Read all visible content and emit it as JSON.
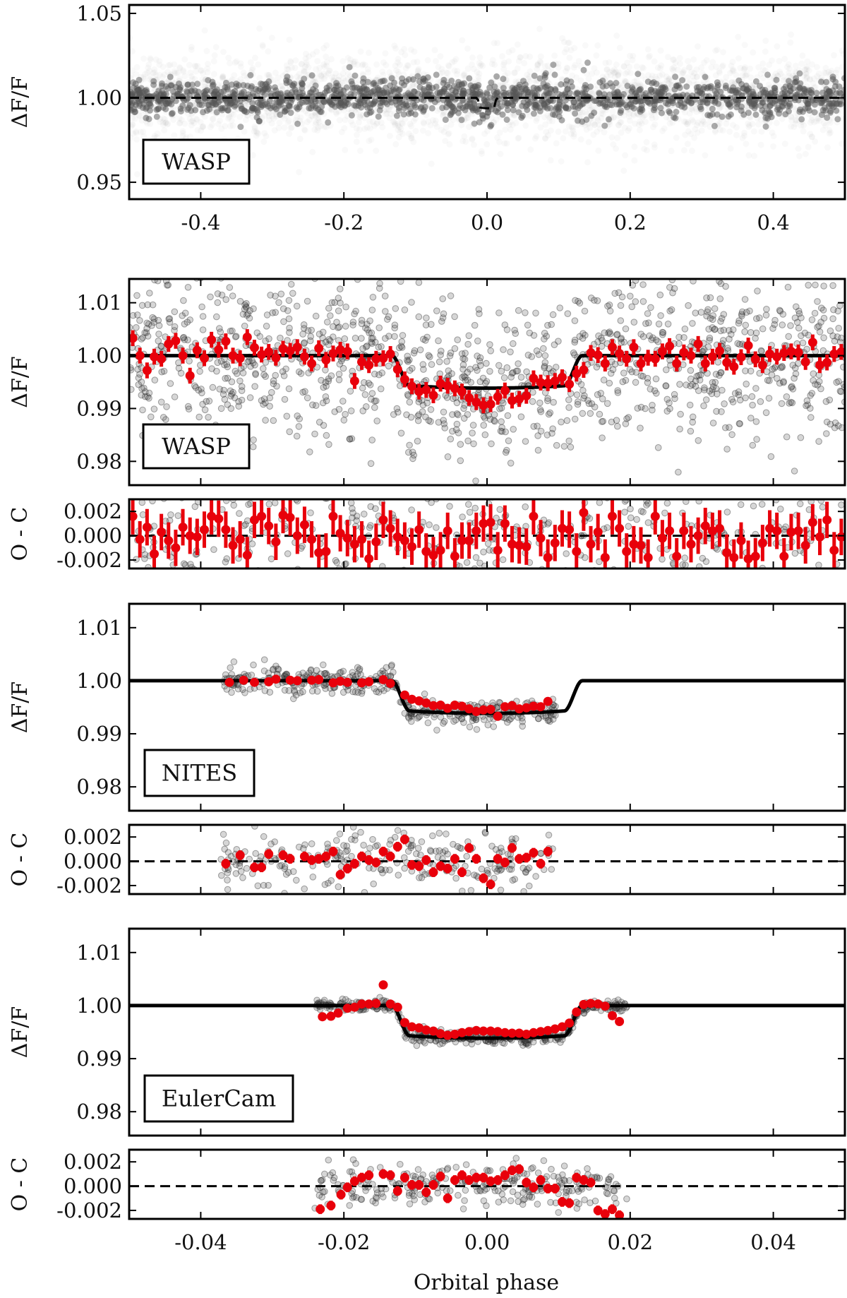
{
  "figure": {
    "xlabel": "Orbital phase"
  },
  "chart_data": [
    {
      "type": "scatter",
      "panel": "wasp-full",
      "label": "WASP",
      "ylabel": "ΔF/F",
      "xlim": [
        -0.5,
        0.5
      ],
      "ylim": [
        0.94,
        1.055
      ],
      "xticks": [
        -0.4,
        -0.2,
        0.0,
        0.2,
        0.4
      ],
      "xticklabels": [
        "-0.4",
        "-0.2",
        "0.0",
        "0.2",
        "0.4"
      ],
      "yticks": [
        0.95,
        1.0,
        1.05
      ],
      "yticklabels": [
        "0.95",
        "1.00",
        "1.05"
      ],
      "model": {
        "style": "dashed",
        "baseline": 1.0,
        "transit_depth": 0.0057,
        "transit_half_width": 0.0133
      },
      "points": "dense grey cloud centred on 1.00, dark core 0.992–1.008, faint scatter 0.95–1.05"
    },
    {
      "type": "scatter",
      "panel": "wasp-zoom",
      "label": "WASP",
      "ylabel": "ΔF/F",
      "xlim": [
        -0.05,
        0.05
      ],
      "ylim": [
        0.9755,
        1.0145
      ],
      "yticks": [
        0.98,
        0.99,
        1.0,
        1.01
      ],
      "yticklabels": [
        "0.98",
        "0.99",
        "1.00",
        "1.01"
      ],
      "model": {
        "style": "solid",
        "baseline": 1.0,
        "depth": 0.0057,
        "contact_t1": 0.0133,
        "contact_t2": 0.0108
      },
      "binned_x": [
        -0.0495,
        -0.0485,
        -0.0475,
        -0.0465,
        -0.0455,
        -0.0445,
        -0.0435,
        -0.0425,
        -0.0415,
        -0.0405,
        -0.0395,
        -0.0385,
        -0.0375,
        -0.0365,
        -0.0355,
        -0.0345,
        -0.0335,
        -0.0325,
        -0.0315,
        -0.0305,
        -0.0295,
        -0.0285,
        -0.0275,
        -0.0265,
        -0.0255,
        -0.0245,
        -0.0235,
        -0.0225,
        -0.0215,
        -0.0205,
        -0.0195,
        -0.0185,
        -0.0175,
        -0.0165,
        -0.0155,
        -0.0145,
        -0.0135,
        -0.0125,
        -0.0115,
        -0.0105,
        -0.0095,
        -0.0085,
        -0.0075,
        -0.0065,
        -0.0055,
        -0.0045,
        -0.0035,
        -0.0025,
        -0.0015,
        -0.0005,
        0.0005,
        0.0015,
        0.0025,
        0.0035,
        0.0045,
        0.0055,
        0.0065,
        0.0075,
        0.0085,
        0.0095,
        0.0105,
        0.0115,
        0.0125,
        0.0135,
        0.0145,
        0.0155,
        0.0165,
        0.0175,
        0.0185,
        0.0195,
        0.0205,
        0.0215,
        0.0225,
        0.0235,
        0.0245,
        0.0255,
        0.0265,
        0.0275,
        0.0285,
        0.0295,
        0.0305,
        0.0315,
        0.0325,
        0.0335,
        0.0345,
        0.0355,
        0.0365,
        0.0375,
        0.0385,
        0.0395,
        0.0405,
        0.0415,
        0.0425,
        0.0435,
        0.0445,
        0.0455,
        0.0465,
        0.0475,
        0.0485,
        0.0495
      ],
      "binned_y": [
        1.0033,
        1.0,
        0.9972,
        0.9998,
        0.9994,
        1.0022,
        1.0028,
        1.0,
        0.9962,
        1.001,
        0.9995,
        1.003,
        1.0011,
        1.0027,
        1.0,
        0.9995,
        1.0035,
        1.0015,
        1.0002,
        1.0007,
        0.9996,
        1.0013,
        1.0009,
        1.0016,
        0.9998,
        0.9985,
        1.0014,
        0.9992,
        1.0004,
        1.0011,
        1.0008,
        0.9952,
        0.9988,
        0.9982,
        0.9994,
        0.9995,
        1.0003,
        0.9974,
        0.9955,
        0.9942,
        0.9932,
        0.9935,
        0.9925,
        0.9947,
        0.9943,
        0.9938,
        0.9932,
        0.992,
        0.9912,
        0.9906,
        0.9908,
        0.9922,
        0.9934,
        0.9915,
        0.9918,
        0.9924,
        0.9957,
        0.9949,
        0.9948,
        0.9952,
        0.9959,
        0.9946,
        0.9966,
        0.9973,
        1.0005,
        1.0001,
        0.9985,
        1.0016,
        1.0004,
        0.9994,
        1.0016,
        0.9985,
        0.9996,
        0.9994,
        1.0008,
        1.0018,
        0.9985,
        1.0006,
        1.0,
        1.0022,
        0.9985,
        0.9998,
        1.0009,
        0.9987,
        0.9979,
        0.9997,
        1.0019,
        0.9993,
        0.9982,
        1.0003,
        0.9998,
        1.0005,
        1.0008,
        1.0006,
        0.9988,
        1.0025,
        0.9982,
        0.9987,
        1.0003,
        1.0007
      ],
      "binned_err": 0.0015
    },
    {
      "type": "scatter",
      "panel": "wasp-resid",
      "ylabel": "O - C",
      "xlim": [
        -0.05,
        0.05
      ],
      "ylim": [
        -0.0027,
        0.003
      ],
      "yticks": [
        -0.002,
        0.0,
        0.002
      ],
      "yticklabels": [
        "-0.002",
        "0.000",
        "0.002"
      ],
      "zero_line": "dashed",
      "binned_x": "same as WASP zoom",
      "binned_y": [
        0.0016,
        -0.0003,
        0.0007,
        -0.0015,
        0.0003,
        -0.0004,
        -0.001,
        0.0007,
        0.0,
        -0.0001,
        0.0005,
        0.0016,
        0.0014,
        0.0005,
        -0.0008,
        -0.0003,
        -0.0016,
        0.0013,
        0.0016,
        0.0008,
        -0.0005,
        0.0017,
        0.0015,
        0.0,
        0.0009,
        -0.0003,
        -0.0014,
        -0.0013,
        0.0016,
        0.0002,
        -0.0002,
        -0.0007,
        -0.0003,
        -0.0019,
        -0.0005,
        0.0013,
        0.0006,
        -0.0001,
        -0.0004,
        -0.0009,
        0.0005,
        -0.0013,
        -0.0016,
        -0.0012,
        0.0004,
        -0.0017,
        -0.0004,
        -0.0004,
        0.0004,
        0.001,
        0.0011,
        -0.0012,
        0.001,
        -0.0007,
        -0.0008,
        -0.0009,
        0.0016,
        -0.0002,
        -0.0018,
        -0.0006,
        0.0006,
        0.0005,
        -0.0013,
        0.0019,
        -0.0007,
        0.0003,
        -0.0018,
        0.0016,
        0.0006,
        -0.0013,
        -0.0007,
        -0.0008,
        -0.0018,
        0.0016,
        -0.0002,
        0.0004,
        -0.0017,
        0.0004,
        -0.0007,
        0.0,
        0.0008,
        0.0004,
        0.0006,
        -0.0014,
        -0.0018,
        -0.0004,
        -0.0019,
        -0.0017,
        -0.0006,
        0.0006,
        0.0004,
        -0.0017,
        0.0003,
        0.0004,
        -0.0008,
        0.0011,
        -0.0001,
        0.0013,
        -0.0012,
        -0.0001
      ],
      "binned_err": 0.0015
    },
    {
      "type": "scatter",
      "panel": "nites",
      "label": "NITES",
      "ylabel": "ΔF/F",
      "xlim": [
        -0.05,
        0.05
      ],
      "ylim": [
        0.9755,
        1.0145
      ],
      "yticks": [
        0.98,
        0.99,
        1.0,
        1.01
      ],
      "yticklabels": [
        "0.98",
        "0.99",
        "1.00",
        "1.01"
      ],
      "binned_x": [
        -0.036,
        -0.034,
        -0.0325,
        -0.0305,
        -0.0295,
        -0.0275,
        -0.0265,
        -0.0245,
        -0.0235,
        -0.0215,
        -0.0205,
        -0.0195,
        -0.0175,
        -0.0165,
        -0.0145,
        -0.0135,
        -0.0115,
        -0.0105,
        -0.0095,
        -0.0085,
        -0.0075,
        -0.0065,
        -0.0055,
        -0.0045,
        -0.0035,
        -0.0025,
        -0.0015,
        -0.0005,
        0.0005,
        0.0015,
        0.0025,
        0.0035,
        0.0045,
        0.0055,
        0.0065,
        0.0075,
        0.0085
      ],
      "binned_y": [
        0.9997,
        1.0001,
        0.9997,
        0.9998,
        1.0003,
        1.0001,
        1.0,
        1.0001,
        1.0002,
        0.9996,
        0.9999,
        0.9997,
        0.9996,
        0.9998,
        1.0002,
        0.9995,
        0.9973,
        0.9965,
        0.9962,
        0.9958,
        0.9953,
        0.9954,
        0.9948,
        0.9954,
        0.9952,
        0.9947,
        0.9942,
        0.9945,
        0.9946,
        0.9933,
        0.9951,
        0.9953,
        0.9947,
        0.9949,
        0.9952,
        0.9951,
        0.9961
      ],
      "binned_err": 0.0004
    },
    {
      "type": "scatter",
      "panel": "nites-resid",
      "ylabel": "O - C",
      "xlim": [
        -0.05,
        0.05
      ],
      "ylim": [
        -0.0027,
        0.003
      ],
      "yticks": [
        -0.002,
        0.0,
        0.002
      ],
      "yticklabels": [
        "-0.002",
        "0.000",
        "0.002"
      ],
      "zero_line": "dashed",
      "binned_x": [
        -0.0365,
        -0.0345,
        -0.0325,
        -0.0315,
        -0.0305,
        -0.0285,
        -0.0275,
        -0.0255,
        -0.0245,
        -0.0235,
        -0.0225,
        -0.0215,
        -0.0205,
        -0.0195,
        -0.0185,
        -0.0175,
        -0.0165,
        -0.0155,
        -0.0145,
        -0.0135,
        -0.0125,
        -0.0115,
        -0.0105,
        -0.0095,
        -0.0085,
        -0.0075,
        -0.0065,
        -0.0055,
        -0.0045,
        -0.0035,
        -0.0025,
        -0.0015,
        -0.0005,
        0.0005,
        0.0015,
        0.0025,
        0.0035,
        0.0045,
        0.0055,
        0.0065,
        0.0075,
        0.0085
      ],
      "binned_y": [
        -0.0002,
        0.0005,
        -0.0005,
        -0.0005,
        0.0006,
        0.0005,
        0.0002,
        0.0004,
        0.0001,
        0.0002,
        0.0004,
        0.0008,
        -0.0011,
        -0.0006,
        -0.0002,
        0.0004,
        0.0001,
        -0.0001,
        0.0008,
        0.0004,
        0.0012,
        0.0018,
        -0.0003,
        -0.0004,
        0.0001,
        -0.0009,
        -0.0004,
        -0.0006,
        0.0002,
        -0.0009,
        0.0011,
        0.0002,
        -0.0014,
        -0.0019,
        0.0002,
        -0.0001,
        0.0011,
        0.0002,
        0.0003,
        0.0007,
        -0.0002,
        0.0008
      ],
      "binned_err": 0.0004
    },
    {
      "type": "scatter",
      "panel": "eulercam",
      "label": "EulerCam",
      "ylabel": "ΔF/F",
      "xlim": [
        -0.05,
        0.05
      ],
      "ylim": [
        0.9755,
        1.0145
      ],
      "yticks": [
        0.98,
        0.99,
        1.0,
        1.01
      ],
      "yticklabels": [
        "0.98",
        "0.99",
        "1.00",
        "1.01"
      ],
      "binned_x": [
        -0.023,
        -0.0218,
        -0.0208,
        -0.0195,
        -0.0185,
        -0.0175,
        -0.0165,
        -0.0155,
        -0.0145,
        -0.0135,
        -0.0125,
        -0.0115,
        -0.0105,
        -0.0095,
        -0.0085,
        -0.0075,
        -0.0065,
        -0.0055,
        -0.0045,
        -0.0035,
        -0.0025,
        -0.0015,
        -0.0005,
        0.0005,
        0.0015,
        0.0025,
        0.0035,
        0.0045,
        0.0055,
        0.0065,
        0.0075,
        0.0085,
        0.0095,
        0.0105,
        0.0115,
        0.0125,
        0.0135,
        0.0145,
        0.0155,
        0.0165,
        0.0175,
        0.0185
      ],
      "binned_y": [
        0.9979,
        0.998,
        0.9986,
        0.9995,
        0.9997,
        1.0003,
        1.0003,
        1.0004,
        1.0039,
        1.0003,
        0.9997,
        0.9968,
        0.996,
        0.9958,
        0.9954,
        0.9952,
        0.9947,
        0.9944,
        0.9946,
        0.9949,
        0.9951,
        0.9953,
        0.9952,
        0.9952,
        0.9951,
        0.9949,
        0.9948,
        0.9948,
        0.9946,
        0.9949,
        0.9951,
        0.9953,
        0.9956,
        0.996,
        0.9967,
        0.9988,
        1.0002,
        1.0004,
        1.0003,
        0.9999,
        0.9981,
        0.997
      ],
      "binned_err": 0.0003
    },
    {
      "type": "scatter",
      "panel": "eulercam-resid",
      "ylabel": "O - C",
      "xlim": [
        -0.05,
        0.05
      ],
      "ylim": [
        -0.0027,
        0.003
      ],
      "yticks": [
        -0.002,
        0.0,
        0.002
      ],
      "yticklabels": [
        "-0.002",
        "0.000",
        "0.002"
      ],
      "zero_line": "dashed",
      "xticks": [
        -0.04,
        -0.02,
        0.0,
        0.02,
        0.04
      ],
      "xticklabels": [
        "-0.04",
        "-0.02",
        "0.00",
        "0.02",
        "0.04"
      ],
      "binned_x": [
        -0.0233,
        -0.0218,
        -0.0204,
        -0.0195,
        -0.0185,
        -0.0175,
        -0.0165,
        -0.0145,
        -0.0135,
        -0.0125,
        -0.0115,
        -0.0105,
        -0.0095,
        -0.0085,
        -0.0075,
        -0.0065,
        -0.0055,
        -0.0045,
        -0.0035,
        -0.0025,
        -0.0015,
        -0.0005,
        0.0005,
        0.0015,
        0.0025,
        0.0035,
        0.0045,
        0.0055,
        0.0065,
        0.0075,
        0.0085,
        0.0095,
        0.0105,
        0.0115,
        0.0125,
        0.0135,
        0.0145,
        0.0155,
        0.0165,
        0.0175,
        0.0185
      ],
      "binned_y": [
        -0.0019,
        -0.0016,
        -0.0007,
        -0.0001,
        0.0004,
        0.0007,
        0.0009,
        0.001,
        0.0009,
        -0.0004,
        0.0007,
        0.0001,
        0.0001,
        -0.0005,
        0.0001,
        0.0008,
        -0.001,
        0.0005,
        0.0009,
        0.0005,
        0.0007,
        0.0007,
        0.0004,
        0.0005,
        0.0009,
        0.0013,
        0.0014,
        0.0003,
        -0.0001,
        0.0005,
        -0.0002,
        -0.0002,
        -0.0013,
        -0.0014,
        0.0007,
        0.0005,
        0.0003,
        -0.002,
        -0.0023,
        -0.0019,
        -0.0024
      ],
      "binned_err": 0.0004
    }
  ],
  "colors": {
    "binned": "#e8000b",
    "model": "#000000",
    "raw": "#777777",
    "frame": "#000000"
  }
}
